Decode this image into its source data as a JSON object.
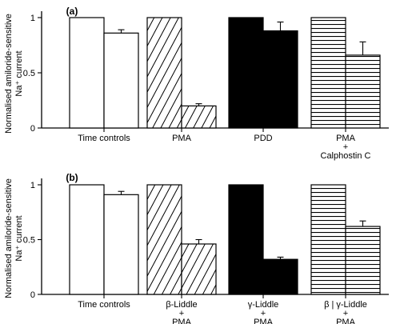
{
  "chart_data": [
    {
      "type": "bar",
      "panel_label": "(a)",
      "ylabel_line1": "Normalised amiloride-sensitive",
      "ylabel_line2": "Na⁺ current",
      "ylim": [
        0,
        1
      ],
      "yticks": [
        "0",
        "0.5",
        "1"
      ],
      "groups": [
        {
          "label_lines": [
            "Time controls"
          ],
          "pattern": "white",
          "values": [
            1.0,
            0.86
          ],
          "errors": [
            0,
            0.03
          ]
        },
        {
          "label_lines": [
            "PMA"
          ],
          "pattern": "diagonal",
          "values": [
            1.0,
            0.2
          ],
          "errors": [
            0,
            0.02
          ]
        },
        {
          "label_lines": [
            "PDD"
          ],
          "pattern": "black",
          "values": [
            1.0,
            0.88
          ],
          "errors": [
            0,
            0.08
          ]
        },
        {
          "label_lines": [
            "PMA",
            "+",
            "Calphostin C"
          ],
          "pattern": "horizontal",
          "values": [
            1.0,
            0.66
          ],
          "errors": [
            0,
            0.12
          ]
        }
      ]
    },
    {
      "type": "bar",
      "panel_label": "(b)",
      "ylabel_line1": "Normalised amiloride-sensitive",
      "ylabel_line2": "Na⁺ current",
      "ylim": [
        0,
        1
      ],
      "yticks": [
        "0",
        "0.5",
        "1"
      ],
      "groups": [
        {
          "label_lines": [
            "Time controls"
          ],
          "pattern": "white",
          "values": [
            1.0,
            0.91
          ],
          "errors": [
            0,
            0.03
          ]
        },
        {
          "label_lines": [
            "β-Liddle",
            "+",
            "PMA"
          ],
          "pattern": "diagonal",
          "values": [
            1.0,
            0.46
          ],
          "errors": [
            0,
            0.04
          ]
        },
        {
          "label_lines": [
            "γ-Liddle",
            "+",
            "PMA"
          ],
          "pattern": "black",
          "values": [
            1.0,
            0.32
          ],
          "errors": [
            0,
            0.02
          ]
        },
        {
          "label_lines": [
            "β | γ-Liddle",
            "+",
            "PMA"
          ],
          "pattern": "horizontal",
          "values": [
            1.0,
            0.62
          ],
          "errors": [
            0,
            0.05
          ]
        }
      ]
    }
  ]
}
